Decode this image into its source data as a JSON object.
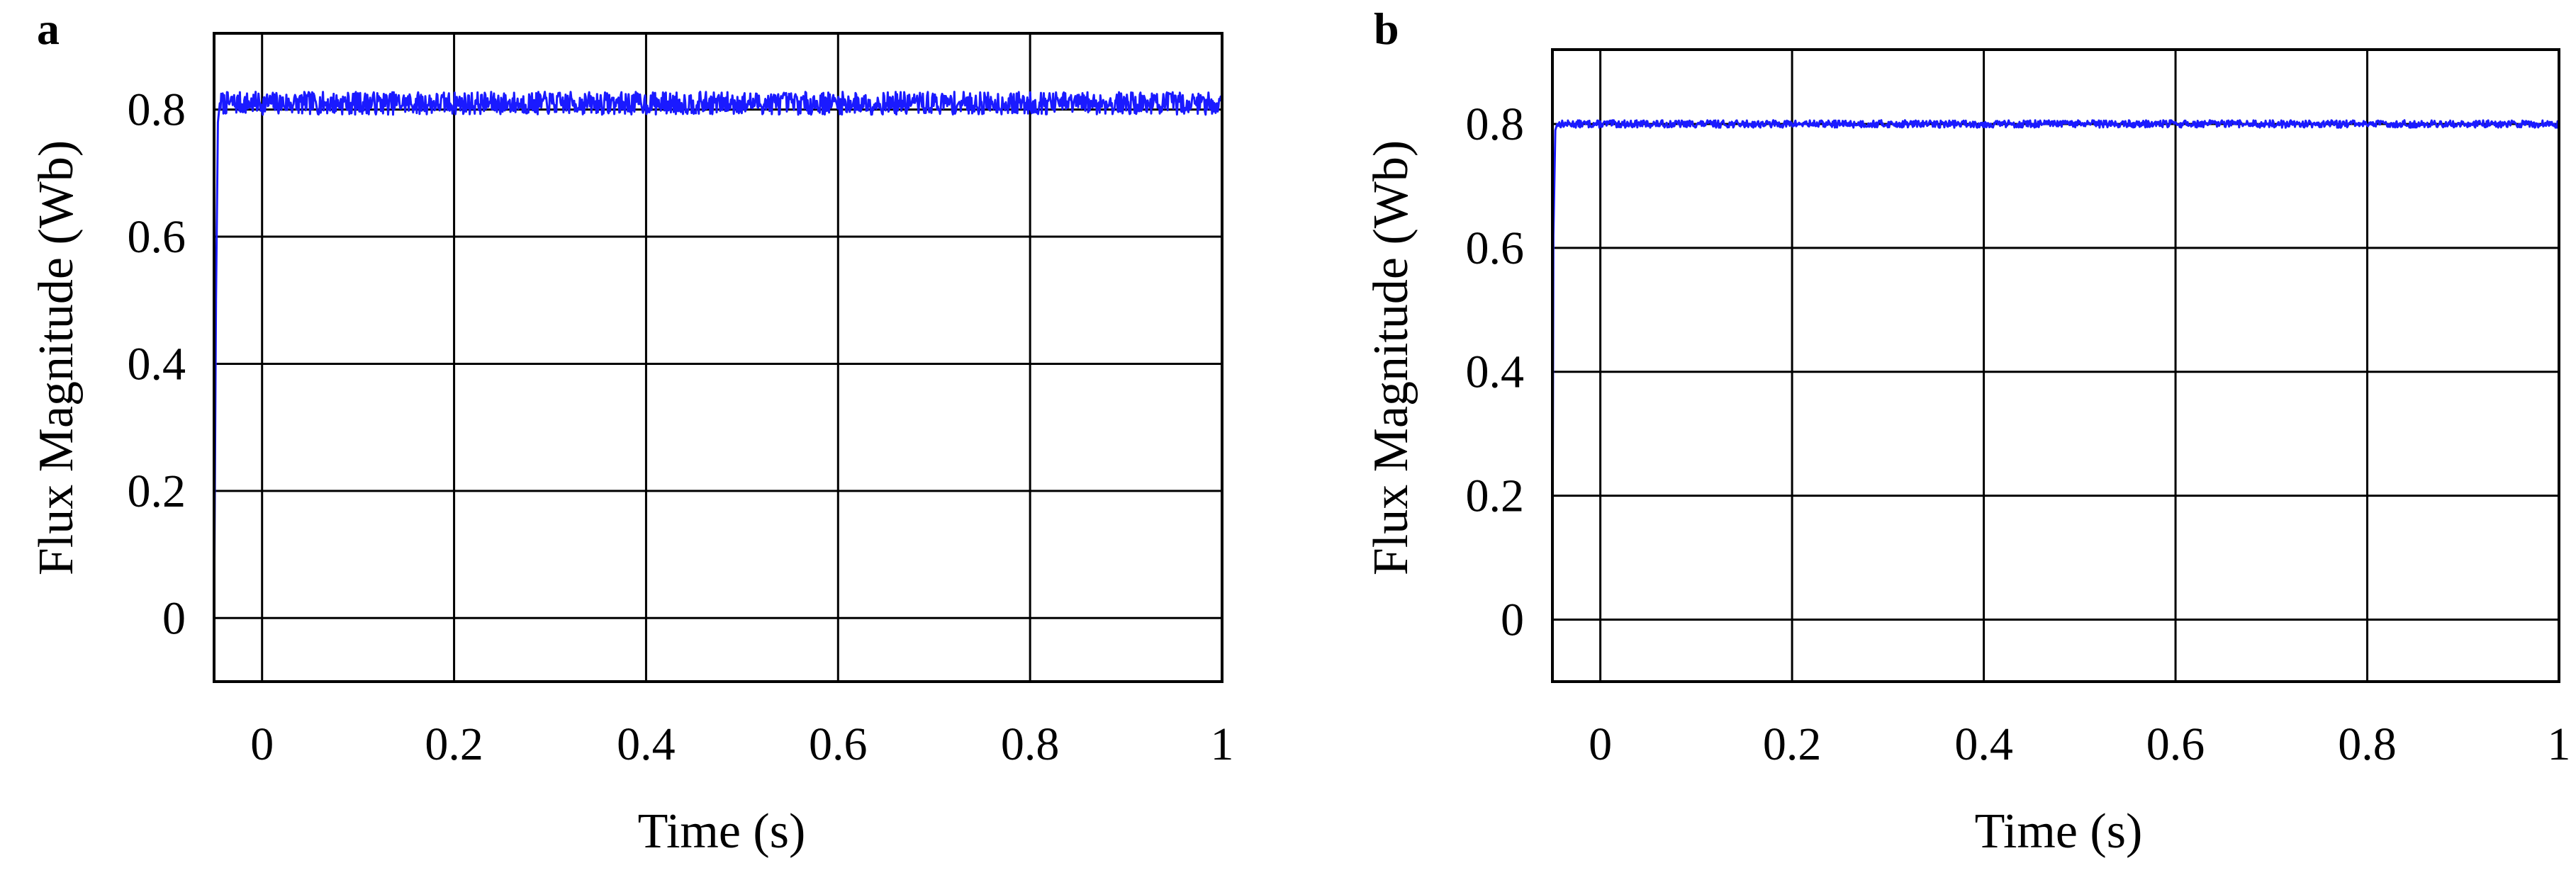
{
  "chart_data": [
    {
      "type": "line",
      "panel_label": "a",
      "xlabel": "Time (s)",
      "ylabel": "Flux Magnitude (Wb)",
      "xlim": [
        -0.05,
        1.0
      ],
      "ylim": [
        -0.1,
        0.92
      ],
      "x_ticks": [
        0,
        0.2,
        0.4,
        0.6,
        0.8,
        1
      ],
      "x_tick_labels": [
        "0",
        "0.2",
        "0.4",
        "0.6",
        "0.8",
        "1"
      ],
      "y_ticks": [
        0,
        0.2,
        0.4,
        0.6,
        0.8
      ],
      "y_tick_labels": [
        "0",
        "0.2",
        "0.4",
        "0.6",
        "0.8"
      ],
      "grid": true,
      "line_color": "#1a1aff",
      "series": [
        {
          "x": [
            -0.05,
            -0.048,
            -0.046,
            -0.044,
            0.0,
            0.2,
            0.4,
            0.6,
            0.8,
            1.0
          ],
          "y": [
            0.0,
            0.5,
            0.78,
            0.81,
            0.81,
            0.81,
            0.81,
            0.81,
            0.81,
            0.81
          ],
          "ripple": 0.018
        }
      ]
    },
    {
      "type": "line",
      "panel_label": "b",
      "xlabel": "Time (s)",
      "ylabel": "Flux Magnitude (Wb)",
      "xlim": [
        -0.05,
        1.0
      ],
      "ylim": [
        -0.1,
        0.92
      ],
      "x_ticks": [
        0,
        0.2,
        0.4,
        0.6,
        0.8,
        1
      ],
      "x_tick_labels": [
        "0",
        "0.2",
        "0.4",
        "0.6",
        "0.8",
        "1"
      ],
      "y_ticks": [
        0,
        0.2,
        0.4,
        0.6,
        0.8
      ],
      "y_tick_labels": [
        "0",
        "0.2",
        "0.4",
        "0.6",
        "0.8"
      ],
      "grid": true,
      "line_color": "#1a1aff",
      "series": [
        {
          "x": [
            -0.05,
            -0.049,
            -0.047,
            -0.045,
            0.0,
            0.2,
            0.4,
            0.6,
            0.8,
            1.0
          ],
          "y": [
            0.0,
            0.62,
            0.79,
            0.8,
            0.8,
            0.8,
            0.8,
            0.8,
            0.8,
            0.8
          ],
          "ripple": 0.006
        }
      ]
    }
  ]
}
